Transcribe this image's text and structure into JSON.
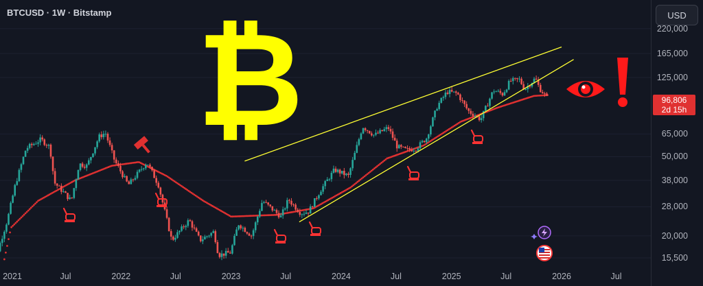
{
  "header": {
    "title": "BTCUSD · 1W · Bitstamp",
    "currency_button": "USD"
  },
  "last_price": {
    "value": "96,806",
    "countdown": "2d 15h"
  },
  "icons": {
    "bitcoin": "₿",
    "hammer": "hammer-icon",
    "eye": "eye-icon",
    "exclamation": "exclamation-icon",
    "pointing_hand": "pointing-hand-icon",
    "lightning": "lightning-badge-icon",
    "flag": "us-flag-icon"
  },
  "colors": {
    "up": "#26a69a",
    "down": "#ef5350",
    "ma": "#e03131",
    "trendline": "#ffff33",
    "bitcoin": "#ffff00"
  },
  "chart_data": {
    "type": "candlestick",
    "timeframe": "1W",
    "y_scale": "log",
    "ylim": [
      14000,
      230000
    ],
    "y_ticks": [
      "220,000",
      "165,000",
      "125,000",
      "65,000",
      "50,000",
      "38,000",
      "28,000",
      "20,000",
      "15,500"
    ],
    "x_ticks": [
      "2021",
      "Jul",
      "2022",
      "Jul",
      "2023",
      "Jul",
      "2024",
      "Jul",
      "2025",
      "Jul",
      "2026",
      "Jul"
    ],
    "x_tick_dates": [
      "2021-01-01",
      "2021-07-01",
      "2022-01-01",
      "2022-07-01",
      "2023-01-01",
      "2023-07-01",
      "2024-01-01",
      "2024-07-01",
      "2025-01-01",
      "2025-07-01",
      "2026-01-01",
      "2026-07-01"
    ],
    "price_anchors": [
      {
        "date": "2020-10-15",
        "price": 11500
      },
      {
        "date": "2020-12-20",
        "price": 24000
      },
      {
        "date": "2021-01-15",
        "price": 36000
      },
      {
        "date": "2021-02-20",
        "price": 55000
      },
      {
        "date": "2021-04-10",
        "price": 61000
      },
      {
        "date": "2021-05-10",
        "price": 56000
      },
      {
        "date": "2021-05-25",
        "price": 37000
      },
      {
        "date": "2021-06-25",
        "price": 33000
      },
      {
        "date": "2021-07-20",
        "price": 30000
      },
      {
        "date": "2021-08-15",
        "price": 46000
      },
      {
        "date": "2021-09-10",
        "price": 45000
      },
      {
        "date": "2021-10-20",
        "price": 63000
      },
      {
        "date": "2021-11-10",
        "price": 66000
      },
      {
        "date": "2021-12-10",
        "price": 48000
      },
      {
        "date": "2022-01-25",
        "price": 36000
      },
      {
        "date": "2022-03-28",
        "price": 47000
      },
      {
        "date": "2022-05-05",
        "price": 36000
      },
      {
        "date": "2022-05-20",
        "price": 29000
      },
      {
        "date": "2022-06-18",
        "price": 19000
      },
      {
        "date": "2022-08-15",
        "price": 24000
      },
      {
        "date": "2022-09-20",
        "price": 19000
      },
      {
        "date": "2022-11-05",
        "price": 21000
      },
      {
        "date": "2022-11-20",
        "price": 16000
      },
      {
        "date": "2022-12-30",
        "price": 16500
      },
      {
        "date": "2023-01-25",
        "price": 23000
      },
      {
        "date": "2023-03-10",
        "price": 20000
      },
      {
        "date": "2023-04-15",
        "price": 30000
      },
      {
        "date": "2023-06-15",
        "price": 25000
      },
      {
        "date": "2023-07-10",
        "price": 30500
      },
      {
        "date": "2023-08-20",
        "price": 26000
      },
      {
        "date": "2023-09-15",
        "price": 26500
      },
      {
        "date": "2023-10-25",
        "price": 34000
      },
      {
        "date": "2023-12-10",
        "price": 43000
      },
      {
        "date": "2024-01-25",
        "price": 40000
      },
      {
        "date": "2024-03-12",
        "price": 71000
      },
      {
        "date": "2024-04-20",
        "price": 64000
      },
      {
        "date": "2024-06-05",
        "price": 70000
      },
      {
        "date": "2024-07-05",
        "price": 56000
      },
      {
        "date": "2024-08-05",
        "price": 54000
      },
      {
        "date": "2024-09-05",
        "price": 55000
      },
      {
        "date": "2024-10-10",
        "price": 62000
      },
      {
        "date": "2024-11-15",
        "price": 90000
      },
      {
        "date": "2024-12-17",
        "price": 106000
      },
      {
        "date": "2025-01-20",
        "price": 104000
      },
      {
        "date": "2025-02-25",
        "price": 85000
      },
      {
        "date": "2025-04-08",
        "price": 77000
      },
      {
        "date": "2025-05-20",
        "price": 108000
      },
      {
        "date": "2025-06-20",
        "price": 103000
      },
      {
        "date": "2025-07-14",
        "price": 120000
      },
      {
        "date": "2025-08-14",
        "price": 122000
      },
      {
        "date": "2025-09-01",
        "price": 109000
      },
      {
        "date": "2025-10-06",
        "price": 124000
      },
      {
        "date": "2025-10-20",
        "price": 110000
      },
      {
        "date": "2025-11-05",
        "price": 103000
      },
      {
        "date": "2025-11-17",
        "price": 96806
      }
    ],
    "moving_average": {
      "style": "dotted",
      "anchors": [
        {
          "date": "2021-01-01",
          "price": 22000
        },
        {
          "date": "2021-04-01",
          "price": 30000
        },
        {
          "date": "2021-08-01",
          "price": 38000
        },
        {
          "date": "2021-12-01",
          "price": 45000
        },
        {
          "date": "2022-03-01",
          "price": 47000
        },
        {
          "date": "2022-06-01",
          "price": 40000
        },
        {
          "date": "2022-10-01",
          "price": 30000
        },
        {
          "date": "2023-01-01",
          "price": 25000
        },
        {
          "date": "2023-06-01",
          "price": 25500
        },
        {
          "date": "2023-10-01",
          "price": 27500
        },
        {
          "date": "2024-02-01",
          "price": 35000
        },
        {
          "date": "2024-06-01",
          "price": 49000
        },
        {
          "date": "2024-10-01",
          "price": 57000
        },
        {
          "date": "2025-02-01",
          "price": 75000
        },
        {
          "date": "2025-06-01",
          "price": 88000
        },
        {
          "date": "2025-10-01",
          "price": 101000
        },
        {
          "date": "2025-11-17",
          "price": 102000
        }
      ]
    },
    "trendlines": [
      {
        "from": {
          "date": "2023-02-15",
          "price": 47500
        },
        "to": {
          "date": "2026-01-01",
          "price": 178000
        }
      },
      {
        "from": {
          "date": "2023-08-15",
          "price": 23500
        },
        "to": {
          "date": "2026-02-10",
          "price": 154000
        }
      }
    ]
  }
}
